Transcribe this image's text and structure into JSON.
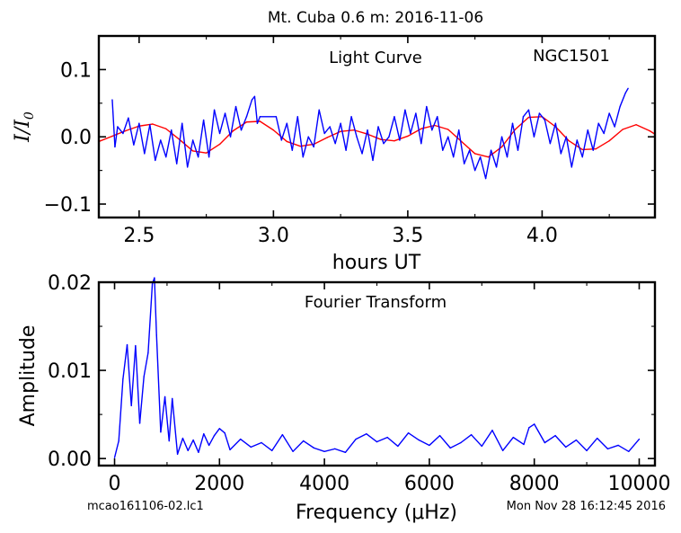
{
  "figure": {
    "title": "Mt. Cuba 0.6 m:  2016-11-06",
    "footer_left": "mcao161106-02.lc1",
    "footer_right": "Mon Nov 28 16:12:45 2016",
    "colors": {
      "data": "#0000ff",
      "fit": "#ff0000",
      "axes": "#000000",
      "background": "#ffffff"
    }
  },
  "chart_data": [
    {
      "type": "line",
      "panel": "light-curve",
      "annotation_left": "Light Curve",
      "annotation_right": "NGC1501",
      "xlabel": "hours UT",
      "ylabel": "I/I",
      "ylabel_sub": "0",
      "xlim": [
        2.35,
        4.42
      ],
      "ylim": [
        -0.12,
        0.15
      ],
      "xticks": [
        2.5,
        3.0,
        3.5,
        4.0
      ],
      "xtick_labels": [
        "2.5",
        "3.0",
        "3.5",
        "4.0"
      ],
      "yticks": [
        -0.1,
        0.0,
        0.1
      ],
      "ytick_labels": [
        "−0.1",
        "0.0",
        "0.1"
      ],
      "grid": false,
      "series": [
        {
          "role": "data",
          "x": [
            2.4,
            2.41,
            2.42,
            2.44,
            2.46,
            2.48,
            2.5,
            2.52,
            2.54,
            2.56,
            2.58,
            2.6,
            2.62,
            2.64,
            2.66,
            2.68,
            2.7,
            2.72,
            2.74,
            2.76,
            2.78,
            2.8,
            2.82,
            2.84,
            2.86,
            2.88,
            2.9,
            2.92,
            2.93,
            2.94,
            2.95,
            3.01,
            3.03,
            3.05,
            3.07,
            3.09,
            3.11,
            3.13,
            3.15,
            3.17,
            3.19,
            3.21,
            3.23,
            3.25,
            3.27,
            3.29,
            3.31,
            3.33,
            3.35,
            3.37,
            3.39,
            3.41,
            3.43,
            3.45,
            3.47,
            3.49,
            3.51,
            3.53,
            3.55,
            3.57,
            3.59,
            3.61,
            3.63,
            3.65,
            3.67,
            3.69,
            3.71,
            3.73,
            3.75,
            3.77,
            3.79,
            3.81,
            3.83,
            3.85,
            3.87,
            3.89,
            3.91,
            3.93,
            3.95,
            3.97,
            3.99,
            4.01,
            4.03,
            4.05,
            4.07,
            4.09,
            4.11,
            4.13,
            4.15,
            4.17,
            4.19,
            4.21,
            4.23,
            4.25,
            4.27,
            4.29,
            4.31,
            4.32
          ],
          "y": [
            0.055,
            -0.015,
            0.015,
            0.005,
            0.028,
            -0.012,
            0.02,
            -0.025,
            0.018,
            -0.035,
            -0.005,
            -0.03,
            0.01,
            -0.04,
            0.02,
            -0.045,
            -0.005,
            -0.03,
            0.025,
            -0.03,
            0.04,
            0.005,
            0.035,
            0.0,
            0.045,
            0.01,
            0.03,
            0.055,
            0.06,
            0.02,
            0.03,
            0.03,
            -0.005,
            0.02,
            -0.02,
            0.03,
            -0.03,
            0.0,
            -0.015,
            0.04,
            0.005,
            0.015,
            -0.01,
            0.02,
            -0.02,
            0.03,
            0.0,
            -0.025,
            0.01,
            -0.035,
            0.015,
            -0.01,
            0.0,
            0.03,
            -0.005,
            0.04,
            0.005,
            0.035,
            -0.01,
            0.045,
            0.01,
            0.03,
            -0.02,
            0.0,
            -0.03,
            0.01,
            -0.04,
            -0.02,
            -0.05,
            -0.03,
            -0.062,
            -0.02,
            -0.045,
            0.0,
            -0.03,
            0.02,
            -0.02,
            0.03,
            0.04,
            0.0,
            0.035,
            0.025,
            -0.01,
            0.02,
            -0.025,
            0.0,
            -0.045,
            -0.005,
            -0.03,
            0.01,
            -0.02,
            0.02,
            0.005,
            0.035,
            0.015,
            0.045,
            0.065,
            0.072
          ]
        },
        {
          "role": "fit",
          "x": [
            2.35,
            2.4,
            2.45,
            2.5,
            2.55,
            2.6,
            2.65,
            2.7,
            2.75,
            2.8,
            2.85,
            2.9,
            2.95,
            3.0,
            3.05,
            3.1,
            3.15,
            3.2,
            3.25,
            3.3,
            3.35,
            3.4,
            3.45,
            3.5,
            3.55,
            3.6,
            3.65,
            3.7,
            3.75,
            3.8,
            3.85,
            3.9,
            3.95,
            4.0,
            4.05,
            4.1,
            4.15,
            4.2,
            4.25,
            4.3,
            4.35,
            4.4,
            4.42
          ],
          "y": [
            -0.007,
            0.001,
            0.009,
            0.016,
            0.019,
            0.012,
            -0.004,
            -0.021,
            -0.024,
            -0.011,
            0.009,
            0.022,
            0.023,
            0.01,
            -0.007,
            -0.014,
            -0.011,
            -0.001,
            0.008,
            0.01,
            0.004,
            -0.004,
            -0.006,
            0.001,
            0.012,
            0.017,
            0.011,
            -0.007,
            -0.025,
            -0.03,
            -0.015,
            0.011,
            0.029,
            0.03,
            0.015,
            -0.006,
            -0.019,
            -0.018,
            -0.006,
            0.011,
            0.018,
            0.009,
            0.004
          ]
        }
      ]
    },
    {
      "type": "line",
      "panel": "fourier-transform",
      "annotation": "Fourier Transform",
      "xlabel": "Frequency (μHz)",
      "ylabel": "Amplitude",
      "xlim": [
        -300,
        10300
      ],
      "ylim": [
        -0.0008,
        0.02
      ],
      "xticks": [
        0,
        2000,
        4000,
        6000,
        8000,
        10000
      ],
      "xtick_labels": [
        "0",
        "2000",
        "4000",
        "6000",
        "8000",
        "10000"
      ],
      "yticks": [
        0.0,
        0.01,
        0.02
      ],
      "ytick_labels": [
        "0.00",
        "0.01",
        "0.02"
      ],
      "grid": false,
      "series": [
        {
          "role": "amplitude",
          "x": [
            0,
            80,
            160,
            240,
            320,
            400,
            480,
            560,
            640,
            720,
            760,
            800,
            880,
            960,
            1040,
            1100,
            1200,
            1300,
            1400,
            1500,
            1600,
            1700,
            1800,
            1900,
            2000,
            2100,
            2200,
            2400,
            2600,
            2800,
            3000,
            3200,
            3400,
            3600,
            3800,
            4000,
            4200,
            4400,
            4600,
            4800,
            5000,
            5200,
            5400,
            5600,
            5800,
            6000,
            6200,
            6400,
            6600,
            6800,
            7000,
            7200,
            7400,
            7600,
            7800,
            7900,
            8000,
            8200,
            8400,
            8600,
            8800,
            9000,
            9200,
            9400,
            9600,
            9800,
            10000
          ],
          "y": [
            0.0001,
            0.002,
            0.009,
            0.0129,
            0.006,
            0.0128,
            0.004,
            0.0093,
            0.012,
            0.0198,
            0.0205,
            0.014,
            0.003,
            0.007,
            0.002,
            0.0068,
            0.0005,
            0.0023,
            0.0009,
            0.0021,
            0.0007,
            0.0028,
            0.0015,
            0.0026,
            0.0034,
            0.0029,
            0.001,
            0.0022,
            0.0013,
            0.0018,
            0.0009,
            0.0027,
            0.0008,
            0.002,
            0.0012,
            0.0008,
            0.0011,
            0.0007,
            0.0022,
            0.0028,
            0.0019,
            0.0024,
            0.0014,
            0.0029,
            0.0021,
            0.0015,
            0.0026,
            0.0012,
            0.0018,
            0.0027,
            0.0014,
            0.0032,
            0.0009,
            0.0024,
            0.0016,
            0.0035,
            0.0039,
            0.0018,
            0.0026,
            0.0013,
            0.0021,
            0.0009,
            0.0023,
            0.0011,
            0.0015,
            0.0008,
            0.0022
          ]
        }
      ]
    }
  ]
}
